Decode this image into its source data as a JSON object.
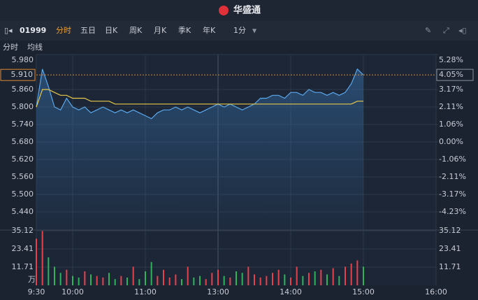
{
  "header": {
    "title": "华盛通"
  },
  "toolbar": {
    "code": "01999",
    "tabs": [
      "分时",
      "五日",
      "日K",
      "周K",
      "月K",
      "季K",
      "年K"
    ],
    "active_tab": 0,
    "interval": "1分"
  },
  "chart_data": {
    "type": "line",
    "x": [
      "9:30",
      "9:35",
      "9:40",
      "9:45",
      "9:50",
      "9:55",
      "10:00",
      "10:05",
      "10:10",
      "10:15",
      "10:20",
      "10:25",
      "10:30",
      "10:35",
      "10:40",
      "10:45",
      "10:50",
      "10:55",
      "11:00",
      "11:05",
      "11:10",
      "11:15",
      "11:20",
      "11:25",
      "11:30",
      "11:35",
      "11:40",
      "11:45",
      "11:50",
      "11:55",
      "13:00",
      "13:05",
      "13:10",
      "13:15",
      "13:20",
      "13:25",
      "13:30",
      "13:35",
      "13:40",
      "13:45",
      "13:50",
      "13:55",
      "14:00",
      "14:05",
      "14:10",
      "14:15",
      "14:20",
      "14:25",
      "14:30",
      "14:35",
      "14:40",
      "14:45",
      "14:50",
      "14:55",
      "15:00"
    ],
    "series": [
      {
        "name": "分时",
        "color": "#5aa8ec",
        "values": [
          5.8,
          5.93,
          5.87,
          5.8,
          5.79,
          5.83,
          5.8,
          5.79,
          5.8,
          5.78,
          5.79,
          5.8,
          5.79,
          5.78,
          5.79,
          5.78,
          5.79,
          5.78,
          5.77,
          5.76,
          5.78,
          5.79,
          5.79,
          5.8,
          5.79,
          5.8,
          5.79,
          5.78,
          5.79,
          5.8,
          5.81,
          5.8,
          5.81,
          5.8,
          5.79,
          5.8,
          5.81,
          5.83,
          5.83,
          5.84,
          5.84,
          5.83,
          5.85,
          5.85,
          5.84,
          5.86,
          5.85,
          5.85,
          5.84,
          5.85,
          5.84,
          5.85,
          5.88,
          5.93,
          5.91
        ]
      },
      {
        "name": "均线",
        "color": "#e8c84a",
        "values": [
          5.8,
          5.86,
          5.86,
          5.85,
          5.84,
          5.84,
          5.83,
          5.83,
          5.83,
          5.82,
          5.82,
          5.82,
          5.82,
          5.81,
          5.81,
          5.81,
          5.81,
          5.81,
          5.81,
          5.81,
          5.81,
          5.81,
          5.81,
          5.81,
          5.81,
          5.81,
          5.81,
          5.81,
          5.81,
          5.81,
          5.81,
          5.81,
          5.81,
          5.81,
          5.81,
          5.81,
          5.81,
          5.81,
          5.81,
          5.81,
          5.81,
          5.81,
          5.81,
          5.81,
          5.81,
          5.81,
          5.81,
          5.81,
          5.81,
          5.81,
          5.81,
          5.81,
          5.81,
          5.82,
          5.82
        ]
      }
    ],
    "xticks": [
      "9:30",
      "10:00",
      "11:00",
      "13:00",
      "14:00",
      "15:00",
      "16:00"
    ],
    "ylim": [
      5.38,
      5.98
    ],
    "yticks": [
      {
        "value": 5.98,
        "label": "5.980"
      },
      {
        "value": 5.86,
        "label": "5.860"
      },
      {
        "value": 5.8,
        "label": "5.800"
      },
      {
        "value": 5.74,
        "label": "5.740"
      },
      {
        "value": 5.68,
        "label": "5.680"
      },
      {
        "value": 5.62,
        "label": "5.620"
      },
      {
        "value": 5.56,
        "label": "5.560"
      },
      {
        "value": 5.5,
        "label": "5.500"
      },
      {
        "value": 5.44,
        "label": "5.440"
      }
    ],
    "y2lim": [
      -5.28,
      5.28
    ],
    "y2ticks": [
      {
        "value": 5.28,
        "label": "5.28%"
      },
      {
        "value": 3.17,
        "label": "3.17%"
      },
      {
        "value": 2.11,
        "label": "2.11%"
      },
      {
        "value": 1.06,
        "label": "1.06%"
      },
      {
        "value": 0,
        "label": "0.00%"
      },
      {
        "value": -1.06,
        "label": "-1.06%"
      },
      {
        "value": -2.11,
        "label": "-2.11%"
      },
      {
        "value": -3.17,
        "label": "-3.17%"
      },
      {
        "value": -4.23,
        "label": "-4.23%"
      }
    ],
    "last_price": {
      "value": 5.91,
      "label": "5.910"
    },
    "last_change": {
      "value": 4.05,
      "label": "4.05%"
    },
    "up_color": "#e5424a",
    "down_color": "#2fb35a",
    "volume": {
      "unit": "万",
      "ylim": [
        0,
        35.12
      ],
      "yticks": [
        11.71,
        23.41,
        35.12
      ],
      "values": [
        30,
        35,
        18,
        12,
        8,
        10,
        6,
        5,
        9,
        7,
        6,
        5,
        8,
        4,
        6,
        5,
        12,
        4,
        9,
        15,
        6,
        10,
        5,
        7,
        4,
        12,
        5,
        6,
        4,
        8,
        10,
        6,
        5,
        9,
        8,
        12,
        7,
        5,
        6,
        8,
        10,
        7,
        5,
        12,
        6,
        8,
        9,
        10,
        7,
        11,
        6,
        12,
        14,
        16,
        12
      ]
    }
  }
}
